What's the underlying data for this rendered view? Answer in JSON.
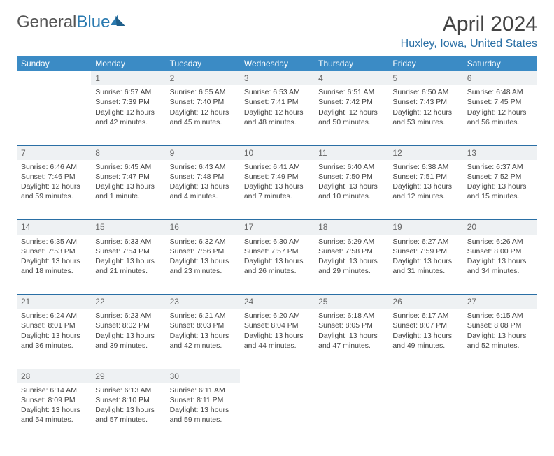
{
  "logo": {
    "part1": "General",
    "part2": "Blue"
  },
  "title": "April 2024",
  "location": "Huxley, Iowa, United States",
  "colors": {
    "header_bg": "#3b8bc5",
    "header_text": "#ffffff",
    "daynum_bg": "#eef1f3",
    "rule": "#2a6fa5",
    "location_text": "#2a6fa5",
    "body_text": "#444444"
  },
  "day_headers": [
    "Sunday",
    "Monday",
    "Tuesday",
    "Wednesday",
    "Thursday",
    "Friday",
    "Saturday"
  ],
  "weeks": [
    {
      "nums": [
        "",
        "1",
        "2",
        "3",
        "4",
        "5",
        "6"
      ],
      "cells": [
        null,
        {
          "sunrise": "Sunrise: 6:57 AM",
          "sunset": "Sunset: 7:39 PM",
          "day1": "Daylight: 12 hours",
          "day2": "and 42 minutes."
        },
        {
          "sunrise": "Sunrise: 6:55 AM",
          "sunset": "Sunset: 7:40 PM",
          "day1": "Daylight: 12 hours",
          "day2": "and 45 minutes."
        },
        {
          "sunrise": "Sunrise: 6:53 AM",
          "sunset": "Sunset: 7:41 PM",
          "day1": "Daylight: 12 hours",
          "day2": "and 48 minutes."
        },
        {
          "sunrise": "Sunrise: 6:51 AM",
          "sunset": "Sunset: 7:42 PM",
          "day1": "Daylight: 12 hours",
          "day2": "and 50 minutes."
        },
        {
          "sunrise": "Sunrise: 6:50 AM",
          "sunset": "Sunset: 7:43 PM",
          "day1": "Daylight: 12 hours",
          "day2": "and 53 minutes."
        },
        {
          "sunrise": "Sunrise: 6:48 AM",
          "sunset": "Sunset: 7:45 PM",
          "day1": "Daylight: 12 hours",
          "day2": "and 56 minutes."
        }
      ]
    },
    {
      "nums": [
        "7",
        "8",
        "9",
        "10",
        "11",
        "12",
        "13"
      ],
      "cells": [
        {
          "sunrise": "Sunrise: 6:46 AM",
          "sunset": "Sunset: 7:46 PM",
          "day1": "Daylight: 12 hours",
          "day2": "and 59 minutes."
        },
        {
          "sunrise": "Sunrise: 6:45 AM",
          "sunset": "Sunset: 7:47 PM",
          "day1": "Daylight: 13 hours",
          "day2": "and 1 minute."
        },
        {
          "sunrise": "Sunrise: 6:43 AM",
          "sunset": "Sunset: 7:48 PM",
          "day1": "Daylight: 13 hours",
          "day2": "and 4 minutes."
        },
        {
          "sunrise": "Sunrise: 6:41 AM",
          "sunset": "Sunset: 7:49 PM",
          "day1": "Daylight: 13 hours",
          "day2": "and 7 minutes."
        },
        {
          "sunrise": "Sunrise: 6:40 AM",
          "sunset": "Sunset: 7:50 PM",
          "day1": "Daylight: 13 hours",
          "day2": "and 10 minutes."
        },
        {
          "sunrise": "Sunrise: 6:38 AM",
          "sunset": "Sunset: 7:51 PM",
          "day1": "Daylight: 13 hours",
          "day2": "and 12 minutes."
        },
        {
          "sunrise": "Sunrise: 6:37 AM",
          "sunset": "Sunset: 7:52 PM",
          "day1": "Daylight: 13 hours",
          "day2": "and 15 minutes."
        }
      ]
    },
    {
      "nums": [
        "14",
        "15",
        "16",
        "17",
        "18",
        "19",
        "20"
      ],
      "cells": [
        {
          "sunrise": "Sunrise: 6:35 AM",
          "sunset": "Sunset: 7:53 PM",
          "day1": "Daylight: 13 hours",
          "day2": "and 18 minutes."
        },
        {
          "sunrise": "Sunrise: 6:33 AM",
          "sunset": "Sunset: 7:54 PM",
          "day1": "Daylight: 13 hours",
          "day2": "and 21 minutes."
        },
        {
          "sunrise": "Sunrise: 6:32 AM",
          "sunset": "Sunset: 7:56 PM",
          "day1": "Daylight: 13 hours",
          "day2": "and 23 minutes."
        },
        {
          "sunrise": "Sunrise: 6:30 AM",
          "sunset": "Sunset: 7:57 PM",
          "day1": "Daylight: 13 hours",
          "day2": "and 26 minutes."
        },
        {
          "sunrise": "Sunrise: 6:29 AM",
          "sunset": "Sunset: 7:58 PM",
          "day1": "Daylight: 13 hours",
          "day2": "and 29 minutes."
        },
        {
          "sunrise": "Sunrise: 6:27 AM",
          "sunset": "Sunset: 7:59 PM",
          "day1": "Daylight: 13 hours",
          "day2": "and 31 minutes."
        },
        {
          "sunrise": "Sunrise: 6:26 AM",
          "sunset": "Sunset: 8:00 PM",
          "day1": "Daylight: 13 hours",
          "day2": "and 34 minutes."
        }
      ]
    },
    {
      "nums": [
        "21",
        "22",
        "23",
        "24",
        "25",
        "26",
        "27"
      ],
      "cells": [
        {
          "sunrise": "Sunrise: 6:24 AM",
          "sunset": "Sunset: 8:01 PM",
          "day1": "Daylight: 13 hours",
          "day2": "and 36 minutes."
        },
        {
          "sunrise": "Sunrise: 6:23 AM",
          "sunset": "Sunset: 8:02 PM",
          "day1": "Daylight: 13 hours",
          "day2": "and 39 minutes."
        },
        {
          "sunrise": "Sunrise: 6:21 AM",
          "sunset": "Sunset: 8:03 PM",
          "day1": "Daylight: 13 hours",
          "day2": "and 42 minutes."
        },
        {
          "sunrise": "Sunrise: 6:20 AM",
          "sunset": "Sunset: 8:04 PM",
          "day1": "Daylight: 13 hours",
          "day2": "and 44 minutes."
        },
        {
          "sunrise": "Sunrise: 6:18 AM",
          "sunset": "Sunset: 8:05 PM",
          "day1": "Daylight: 13 hours",
          "day2": "and 47 minutes."
        },
        {
          "sunrise": "Sunrise: 6:17 AM",
          "sunset": "Sunset: 8:07 PM",
          "day1": "Daylight: 13 hours",
          "day2": "and 49 minutes."
        },
        {
          "sunrise": "Sunrise: 6:15 AM",
          "sunset": "Sunset: 8:08 PM",
          "day1": "Daylight: 13 hours",
          "day2": "and 52 minutes."
        }
      ]
    },
    {
      "nums": [
        "28",
        "29",
        "30",
        "",
        "",
        "",
        ""
      ],
      "cells": [
        {
          "sunrise": "Sunrise: 6:14 AM",
          "sunset": "Sunset: 8:09 PM",
          "day1": "Daylight: 13 hours",
          "day2": "and 54 minutes."
        },
        {
          "sunrise": "Sunrise: 6:13 AM",
          "sunset": "Sunset: 8:10 PM",
          "day1": "Daylight: 13 hours",
          "day2": "and 57 minutes."
        },
        {
          "sunrise": "Sunrise: 6:11 AM",
          "sunset": "Sunset: 8:11 PM",
          "day1": "Daylight: 13 hours",
          "day2": "and 59 minutes."
        },
        null,
        null,
        null,
        null
      ]
    }
  ]
}
